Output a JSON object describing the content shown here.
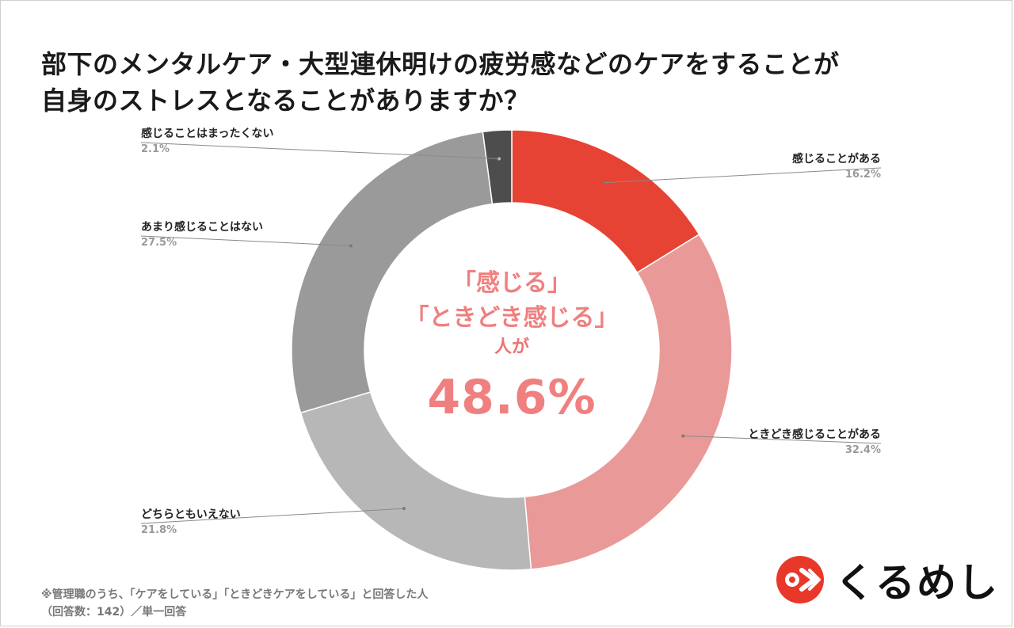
{
  "title_lines": [
    "部下のメンタルケア・大型連休明けの疲労感などのケアをすることが",
    "自身のストレスとなることがありますか？"
  ],
  "chart_data": {
    "type": "pie",
    "donut": true,
    "categories": [
      "感じることがある",
      "ときどき感じることがある",
      "どちらともいえない",
      "あまり感じることはない",
      "感じることはまったくない"
    ],
    "values": [
      16.2,
      32.4,
      21.8,
      27.5,
      2.1
    ],
    "value_labels": [
      "16.2%",
      "32.4%",
      "21.8%",
      "27.5%",
      "2.1%"
    ],
    "colors": [
      "#e64334",
      "#e99a98",
      "#b7b7b7",
      "#9a9a9a",
      "#4d4d4d"
    ]
  },
  "center": {
    "line1": "「感じる」",
    "line2": "「ときどき感じる」",
    "line3": "人が",
    "percent": "48.6%"
  },
  "footnote": {
    "line1": "※管理職のうち、「ケアをしている」「ときどきケアをしている」と回答した人",
    "line2": "（回答数：142）／単一回答"
  },
  "logo": {
    "text": "くるめし"
  }
}
